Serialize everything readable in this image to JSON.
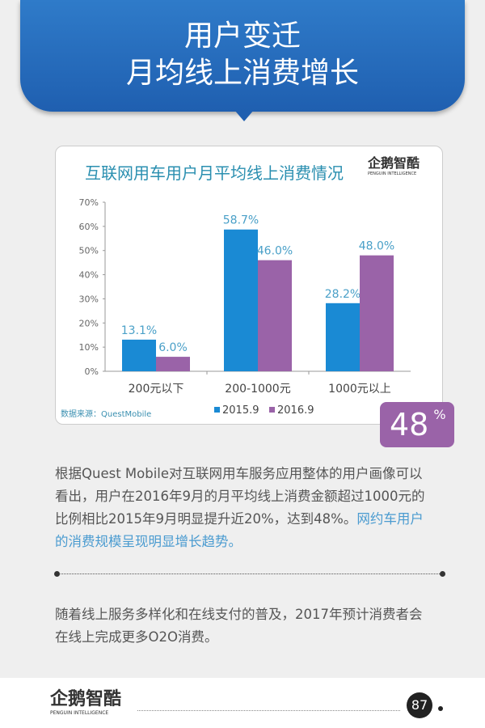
{
  "header": {
    "line1": "用户变迁",
    "line2": "月均线上消费增长"
  },
  "chart_data": {
    "type": "bar",
    "title": "互联网用车用户月平均线上消费情况",
    "categories": [
      "200元以下",
      "200-1000元",
      "1000元以上"
    ],
    "series": [
      {
        "name": "2015.9",
        "values": [
          13.1,
          58.7,
          28.2
        ],
        "color": "#1a8ad4"
      },
      {
        "name": "2016.9",
        "values": [
          6.0,
          46.0,
          48.0
        ],
        "color": "#9a63a8"
      }
    ],
    "data_labels": [
      [
        "13.1%",
        "58.7%",
        "28.2%"
      ],
      [
        "6.0%",
        "46.0%",
        "48.0%"
      ]
    ],
    "yticks": [
      "0%",
      "10%",
      "20%",
      "30%",
      "40%",
      "50%",
      "60%",
      "70%"
    ],
    "ylim": [
      0,
      70
    ],
    "legend": "bottom",
    "source": "数据来源：QuestMobile"
  },
  "logo": {
    "name": "企鹅智酷",
    "sub": "PENGUIN INTELLIGENCE"
  },
  "badge": {
    "value": "48",
    "unit": "%"
  },
  "para1": {
    "text": "根据Quest Mobile对互联网用车服务应用整体的用户画像可以看出，用户在2016年9月的月平均线上消费金额超过1000元的比例相比2015年9月明显提升近20%，达到48%。",
    "highlight": "网约车用户的消费规模呈现明显增长趋势。"
  },
  "para2": "随着线上服务多样化和在线支付的普及，2017年预计消费者会在线上完成更多O2O消费。",
  "footer": {
    "page": "87"
  }
}
